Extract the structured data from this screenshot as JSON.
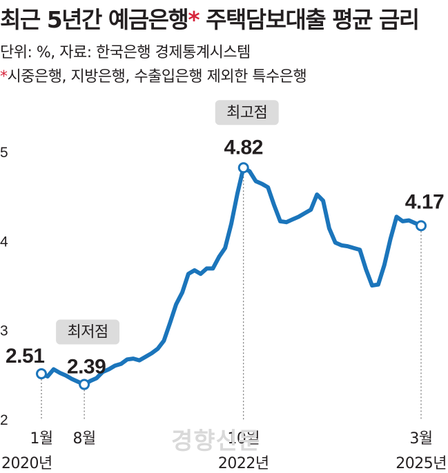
{
  "header": {
    "title": "최근 5년간 예금은행",
    "title_star": "*",
    "title_rest": " 주택담보대출 평균 금리",
    "unit_note": "단위: %, 자료: 한국은행 경제통계시스템",
    "footnote_star": "*",
    "footnote": "시중은행, 지방은행, 수출입은행 제외한 특수은행"
  },
  "watermark": "경향신문",
  "colors": {
    "line": "#1b75bb",
    "text": "#231f20",
    "accent": "#d7263d",
    "callout_bg": "#dcdcdc"
  },
  "chart_data": {
    "type": "line",
    "title": "최근 5년간 예금은행* 주택담보대출 평균 금리",
    "ylim": [
      2,
      5
    ],
    "yticks": [
      "2",
      "3",
      "4",
      "5"
    ],
    "x_start": "2020-01",
    "series": [
      {
        "values": [
          2.51,
          2.48,
          2.56,
          2.52,
          2.49,
          2.45,
          2.42,
          2.39,
          2.43,
          2.46,
          2.53,
          2.56,
          2.6,
          2.62,
          2.67,
          2.68,
          2.66,
          2.7,
          2.74,
          2.79,
          2.88,
          3.08,
          3.29,
          3.42,
          3.63,
          3.67,
          3.63,
          3.69,
          3.69,
          3.82,
          3.92,
          4.19,
          4.53,
          4.82,
          4.78,
          4.67,
          4.64,
          4.6,
          4.4,
          4.22,
          4.21,
          4.24,
          4.27,
          4.31,
          4.35,
          4.52,
          4.45,
          4.14,
          3.98,
          3.95,
          3.94,
          3.92,
          3.9,
          3.68,
          3.5,
          3.51,
          3.73,
          4.02,
          4.27,
          4.22,
          4.23,
          4.2,
          4.17
        ]
      }
    ],
    "x_labels": [
      {
        "index": 0,
        "month": "1월",
        "year": "2020년"
      },
      {
        "index": 7,
        "month": "8월",
        "year": ""
      },
      {
        "index": 33,
        "month": "10월",
        "year": "2022년"
      },
      {
        "index": 62,
        "month": "3월",
        "year": "2025년"
      }
    ],
    "annotations": [
      {
        "index": 0,
        "label": "2.51",
        "callout": ""
      },
      {
        "index": 7,
        "label": "2.39",
        "callout": "최저점"
      },
      {
        "index": 33,
        "label": "4.82",
        "callout": "최고점"
      },
      {
        "index": 62,
        "label": "4.17",
        "callout": ""
      }
    ]
  }
}
